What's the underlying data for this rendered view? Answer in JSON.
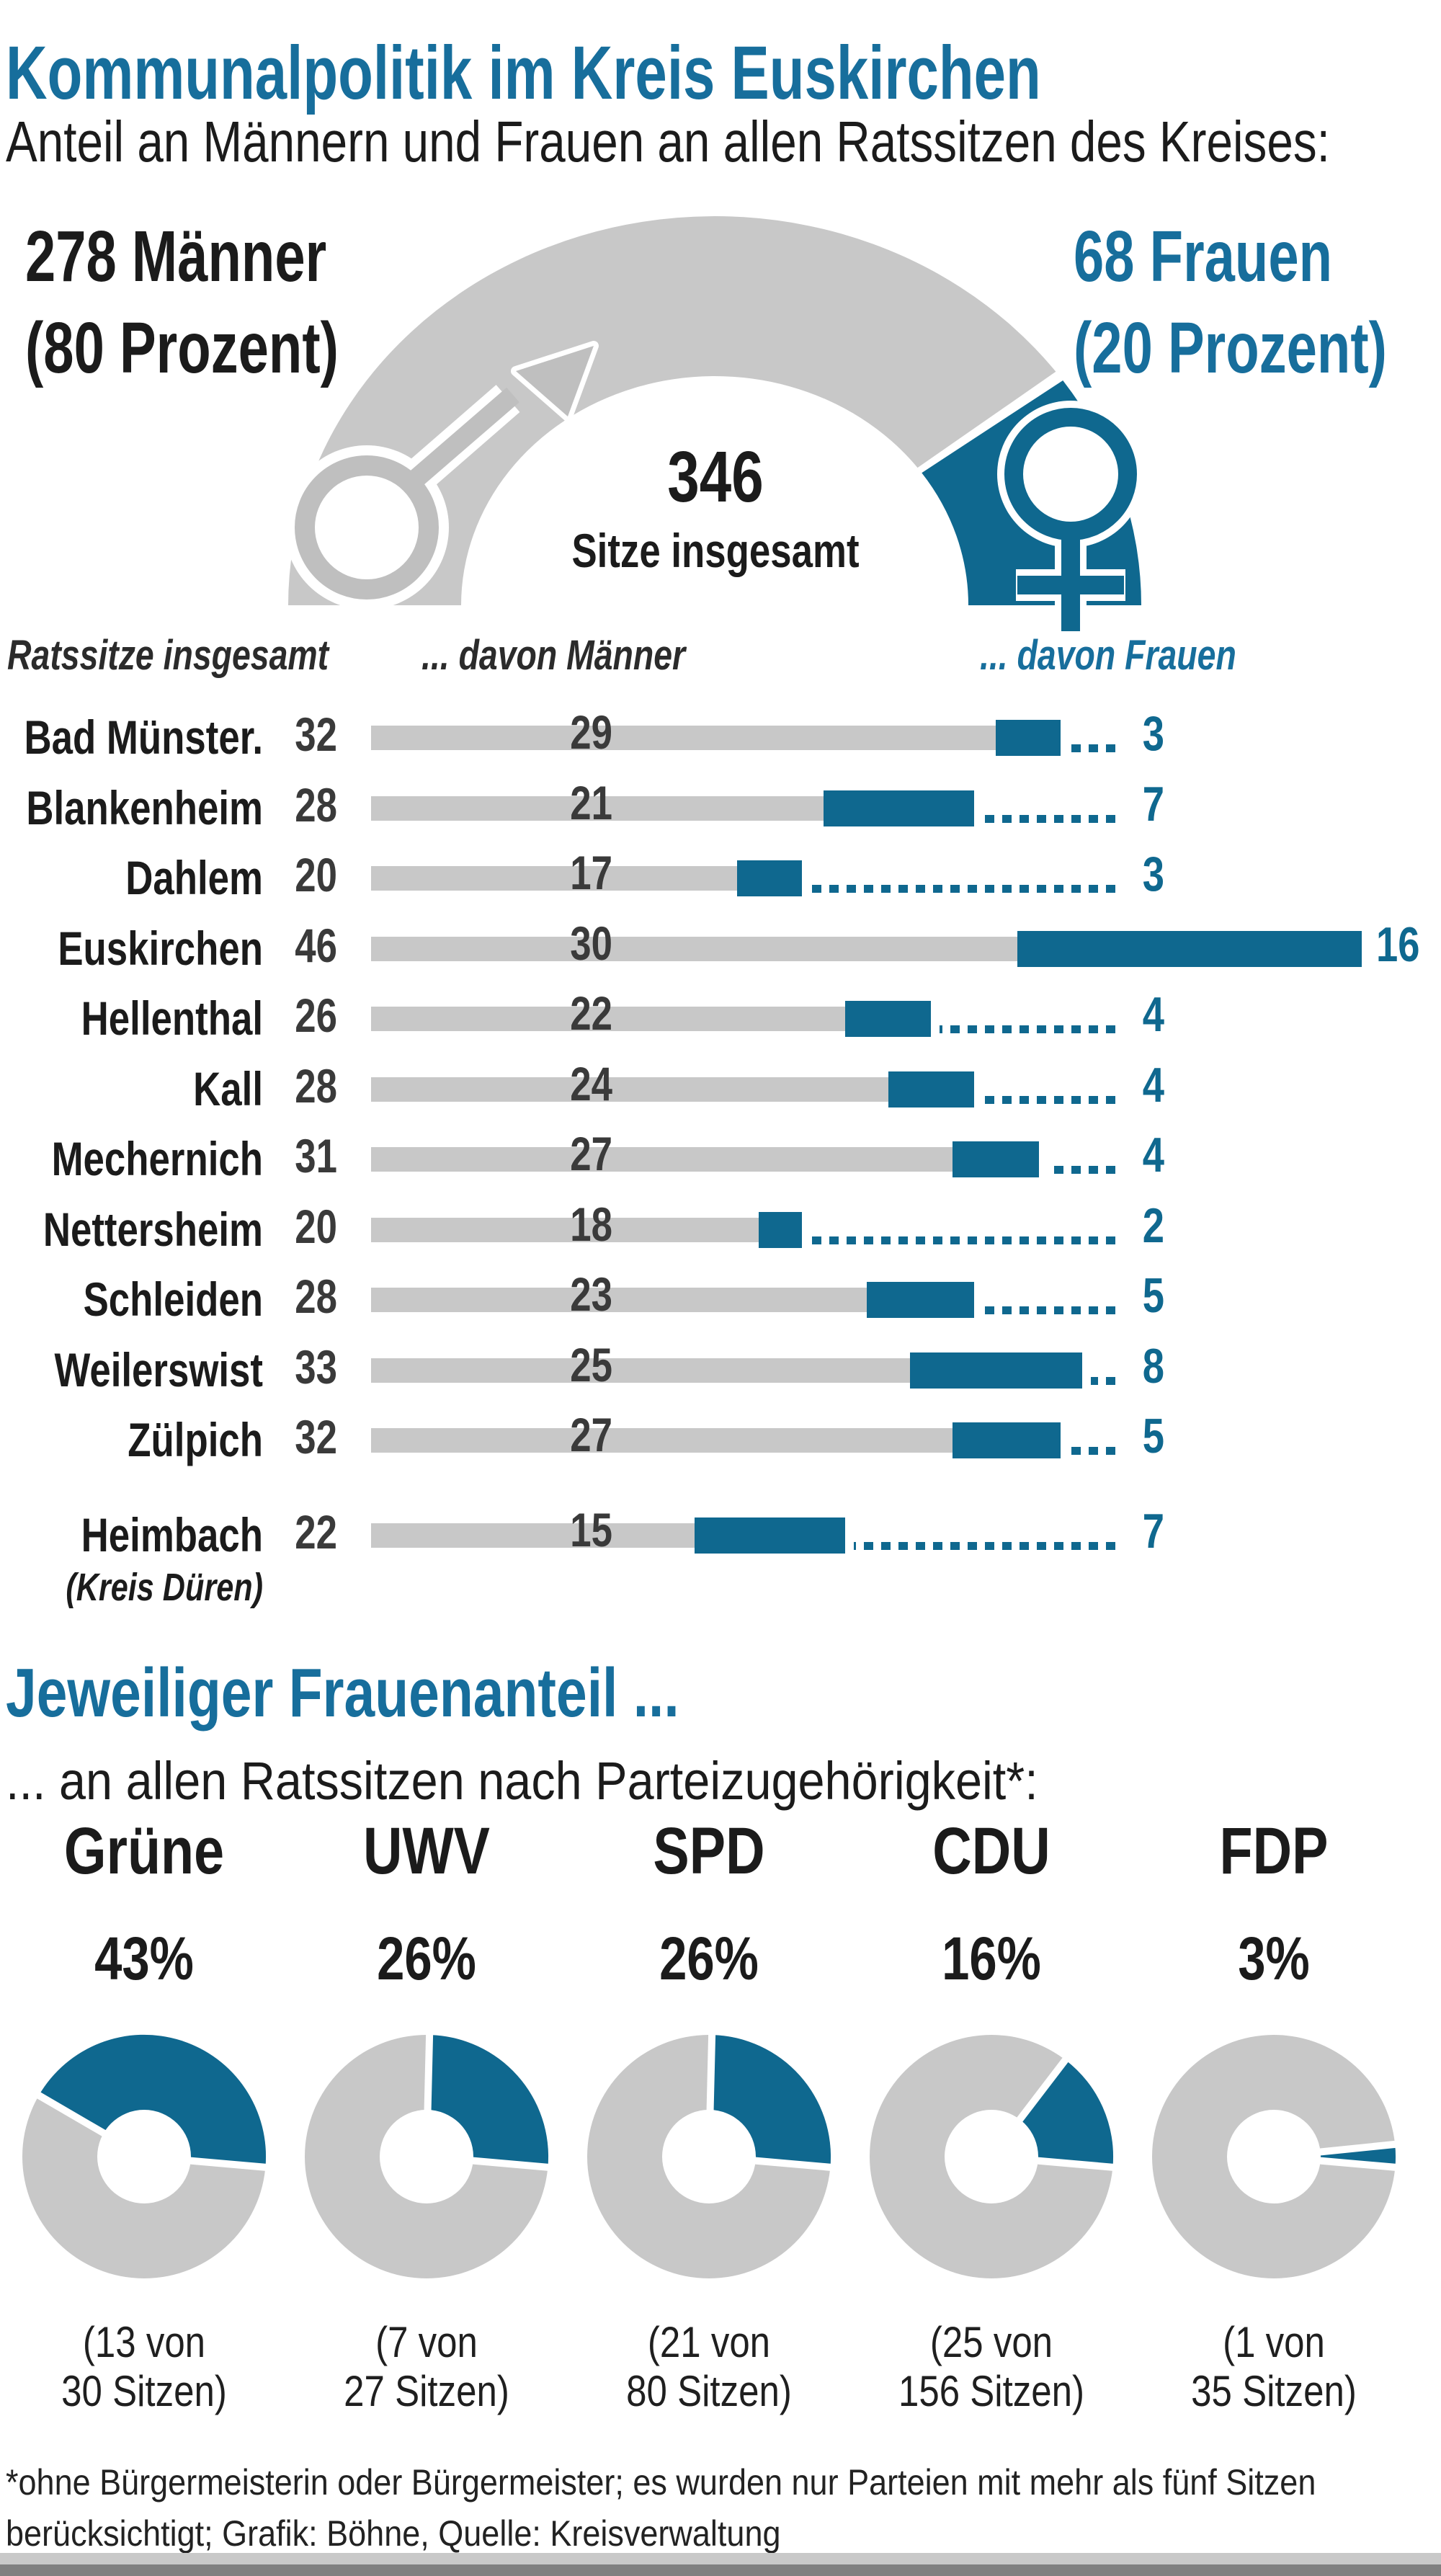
{
  "title": "Kommunalpolitik im Kreis Euskirchen",
  "subtitle": "Anteil an Männern und Frauen an allen Ratssitzen des Kreises:",
  "gauge": {
    "men_count_label": "278 Männer",
    "men_pct_label": "(80 Prozent)",
    "women_count_label": "68 Frauen",
    "women_pct_label": "(20 Prozent)",
    "total_value": "346",
    "total_label": "Sitze insgesamt",
    "men_pct": 80,
    "women_pct": 20
  },
  "table": {
    "headers": {
      "total": "Ratssitze insgesamt",
      "men": "... davon Männer",
      "women": "... davon Frauen"
    },
    "rows": [
      {
        "name": "Bad Münster.",
        "total": 32,
        "men": 29,
        "women": 3
      },
      {
        "name": "Blankenheim",
        "total": 28,
        "men": 21,
        "women": 7
      },
      {
        "name": "Dahlem",
        "total": 20,
        "men": 17,
        "women": 3
      },
      {
        "name": "Euskirchen",
        "total": 46,
        "men": 30,
        "women": 16
      },
      {
        "name": "Hellenthal",
        "total": 26,
        "men": 22,
        "women": 4
      },
      {
        "name": "Kall",
        "total": 28,
        "men": 24,
        "women": 4
      },
      {
        "name": "Mechernich",
        "total": 31,
        "men": 27,
        "women": 4
      },
      {
        "name": "Nettersheim",
        "total": 20,
        "men": 18,
        "women": 2
      },
      {
        "name": "Schleiden",
        "total": 28,
        "men": 23,
        "women": 5
      },
      {
        "name": "Weilerswist",
        "total": 33,
        "men": 25,
        "women": 8
      },
      {
        "name": "Zülpich",
        "total": 32,
        "men": 27,
        "women": 5
      },
      {
        "name": "Heimbach",
        "name2": "(Kreis Düren)",
        "total": 22,
        "men": 15,
        "women": 7
      }
    ]
  },
  "section2": {
    "title": "Jeweiliger Frauenanteil ...",
    "subtitle": "... an allen Ratssitzen nach Parteizugehörigkeit*:"
  },
  "parties": [
    {
      "name": "Grüne",
      "pct_label": "43%",
      "pct": 43,
      "caption1": "(13 von",
      "caption2": "30 Sitzen)"
    },
    {
      "name": "UWV",
      "pct_label": "26%",
      "pct": 26,
      "caption1": "(7 von",
      "caption2": "27 Sitzen)"
    },
    {
      "name": "SPD",
      "pct_label": "26%",
      "pct": 26,
      "caption1": "(21 von",
      "caption2": "80 Sitzen)"
    },
    {
      "name": "CDU",
      "pct_label": "16%",
      "pct": 16,
      "caption1": "(25 von",
      "caption2": "156 Sitzen)"
    },
    {
      "name": "FDP",
      "pct_label": "3%",
      "pct": 3,
      "caption1": "(1 von",
      "caption2": "35 Sitzen)"
    }
  ],
  "footnote": {
    "line1": "*ohne Bürgermeisterin oder Bürgermeister; es wurden nur Parteien mit mehr als fünf Sitzen",
    "line2": "berücksichtigt; Grafik: Böhne, Quelle: Kreisverwaltung"
  },
  "colors": {
    "teal": "#0F688F",
    "teal_heading": "#176E9C",
    "gray": "#C8C8C8",
    "dark_text": "#1B1B1B",
    "number_gray": "#3A3A3A"
  },
  "chart_data": [
    {
      "type": "pie",
      "title": "Anteil an Männern und Frauen an allen Ratssitzen des Kreises",
      "labels": [
        "Männer",
        "Frauen"
      ],
      "values": [
        278,
        68
      ],
      "percent": [
        80,
        20
      ],
      "total": 346,
      "unit": "Sitze"
    },
    {
      "type": "bar",
      "title": "Ratssitze je Kommune",
      "categories": [
        "Bad Münster.",
        "Blankenheim",
        "Dahlem",
        "Euskirchen",
        "Hellenthal",
        "Kall",
        "Mechernich",
        "Nettersheim",
        "Schleiden",
        "Weilerswist",
        "Zülpich",
        "Heimbach (Kreis Düren)"
      ],
      "series": [
        {
          "name": "Ratssitze insgesamt",
          "values": [
            32,
            28,
            20,
            46,
            26,
            28,
            31,
            20,
            28,
            33,
            32,
            22
          ]
        },
        {
          "name": "davon Männer",
          "values": [
            29,
            21,
            17,
            30,
            22,
            24,
            27,
            18,
            23,
            25,
            27,
            15
          ]
        },
        {
          "name": "davon Frauen",
          "values": [
            3,
            7,
            3,
            16,
            4,
            4,
            4,
            2,
            5,
            8,
            5,
            7
          ]
        }
      ]
    },
    {
      "type": "pie",
      "title": "Jeweiliger Frauenanteil an allen Ratssitzen nach Parteizugehörigkeit",
      "categories": [
        "Grüne",
        "UWV",
        "SPD",
        "CDU",
        "FDP"
      ],
      "values": [
        43,
        26,
        26,
        16,
        3
      ],
      "unit": "Prozent",
      "detail": [
        "13 von 30 Sitzen",
        "7 von 27 Sitzen",
        "21 von 80 Sitzen",
        "25 von 156 Sitzen",
        "1 von 35 Sitzen"
      ]
    }
  ]
}
